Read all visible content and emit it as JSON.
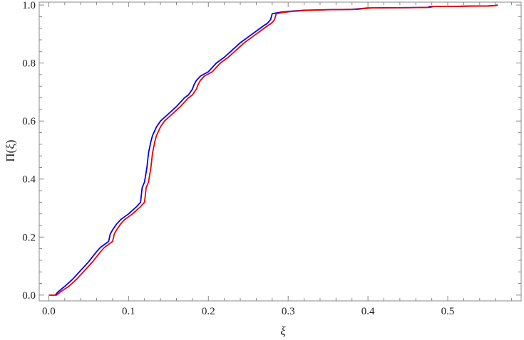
{
  "chart_data": {
    "type": "line",
    "title": "",
    "xlabel": "ξ",
    "ylabel": "Π(ξ)",
    "xlim": [
      -0.012,
      0.592
    ],
    "ylim": [
      -0.02,
      1.01
    ],
    "xticks": [
      0.0,
      0.1,
      0.2,
      0.3,
      0.4,
      0.5
    ],
    "xtick_labels": [
      "0.0",
      "0.1",
      "0.2",
      "0.3",
      "0.4",
      "0.5"
    ],
    "yticks": [
      0.0,
      0.2,
      0.4,
      0.6,
      0.8,
      1.0
    ],
    "ytick_labels": [
      "0.0",
      "0.2",
      "0.4",
      "0.6",
      "0.8",
      "1.0"
    ],
    "grid": false,
    "legend": "none",
    "frame": "box",
    "series": [
      {
        "color": "#0000ee",
        "x": [
          0.0,
          0.008,
          0.012,
          0.02,
          0.03,
          0.04,
          0.05,
          0.06,
          0.065,
          0.07,
          0.075,
          0.077,
          0.08,
          0.085,
          0.09,
          0.1,
          0.11,
          0.115,
          0.117,
          0.12,
          0.123,
          0.125,
          0.128,
          0.13,
          0.135,
          0.14,
          0.15,
          0.16,
          0.17,
          0.175,
          0.18,
          0.182,
          0.185,
          0.19,
          0.2,
          0.21,
          0.22,
          0.23,
          0.24,
          0.25,
          0.26,
          0.27,
          0.273,
          0.275,
          0.278,
          0.28,
          0.29,
          0.3,
          0.32,
          0.35,
          0.38,
          0.4,
          0.45,
          0.475,
          0.478,
          0.5,
          0.52,
          0.55,
          0.558,
          0.562
        ],
        "y": [
          0.0,
          0.0,
          0.012,
          0.03,
          0.055,
          0.085,
          0.115,
          0.15,
          0.165,
          0.175,
          0.185,
          0.21,
          0.225,
          0.245,
          0.26,
          0.28,
          0.305,
          0.32,
          0.37,
          0.39,
          0.44,
          0.49,
          0.53,
          0.55,
          0.58,
          0.6,
          0.625,
          0.65,
          0.68,
          0.69,
          0.71,
          0.725,
          0.74,
          0.755,
          0.77,
          0.8,
          0.82,
          0.845,
          0.87,
          0.89,
          0.91,
          0.93,
          0.935,
          0.94,
          0.95,
          0.97,
          0.975,
          0.978,
          0.982,
          0.984,
          0.985,
          0.99,
          0.991,
          0.992,
          0.995,
          0.995,
          0.996,
          0.997,
          0.998,
          1.0
        ]
      },
      {
        "color": "#ee0000",
        "x": [
          0.0,
          0.01,
          0.015,
          0.025,
          0.035,
          0.045,
          0.055,
          0.065,
          0.07,
          0.075,
          0.08,
          0.082,
          0.085,
          0.09,
          0.095,
          0.105,
          0.115,
          0.12,
          0.122,
          0.125,
          0.128,
          0.13,
          0.133,
          0.135,
          0.14,
          0.145,
          0.155,
          0.165,
          0.175,
          0.18,
          0.185,
          0.187,
          0.19,
          0.195,
          0.205,
          0.215,
          0.225,
          0.235,
          0.245,
          0.255,
          0.265,
          0.275,
          0.278,
          0.28,
          0.283,
          0.285,
          0.295,
          0.305,
          0.325,
          0.355,
          0.385,
          0.405,
          0.455,
          0.478,
          0.482,
          0.505,
          0.525,
          0.555,
          0.56,
          0.563
        ],
        "y": [
          0.0,
          0.0,
          0.012,
          0.03,
          0.055,
          0.085,
          0.115,
          0.15,
          0.165,
          0.175,
          0.185,
          0.21,
          0.225,
          0.245,
          0.26,
          0.28,
          0.305,
          0.32,
          0.37,
          0.39,
          0.44,
          0.49,
          0.53,
          0.55,
          0.58,
          0.6,
          0.625,
          0.65,
          0.68,
          0.69,
          0.71,
          0.725,
          0.74,
          0.755,
          0.77,
          0.8,
          0.82,
          0.845,
          0.87,
          0.89,
          0.91,
          0.93,
          0.935,
          0.94,
          0.95,
          0.97,
          0.975,
          0.978,
          0.982,
          0.984,
          0.985,
          0.99,
          0.991,
          0.992,
          0.995,
          0.995,
          0.996,
          0.997,
          0.998,
          1.0
        ]
      }
    ]
  }
}
